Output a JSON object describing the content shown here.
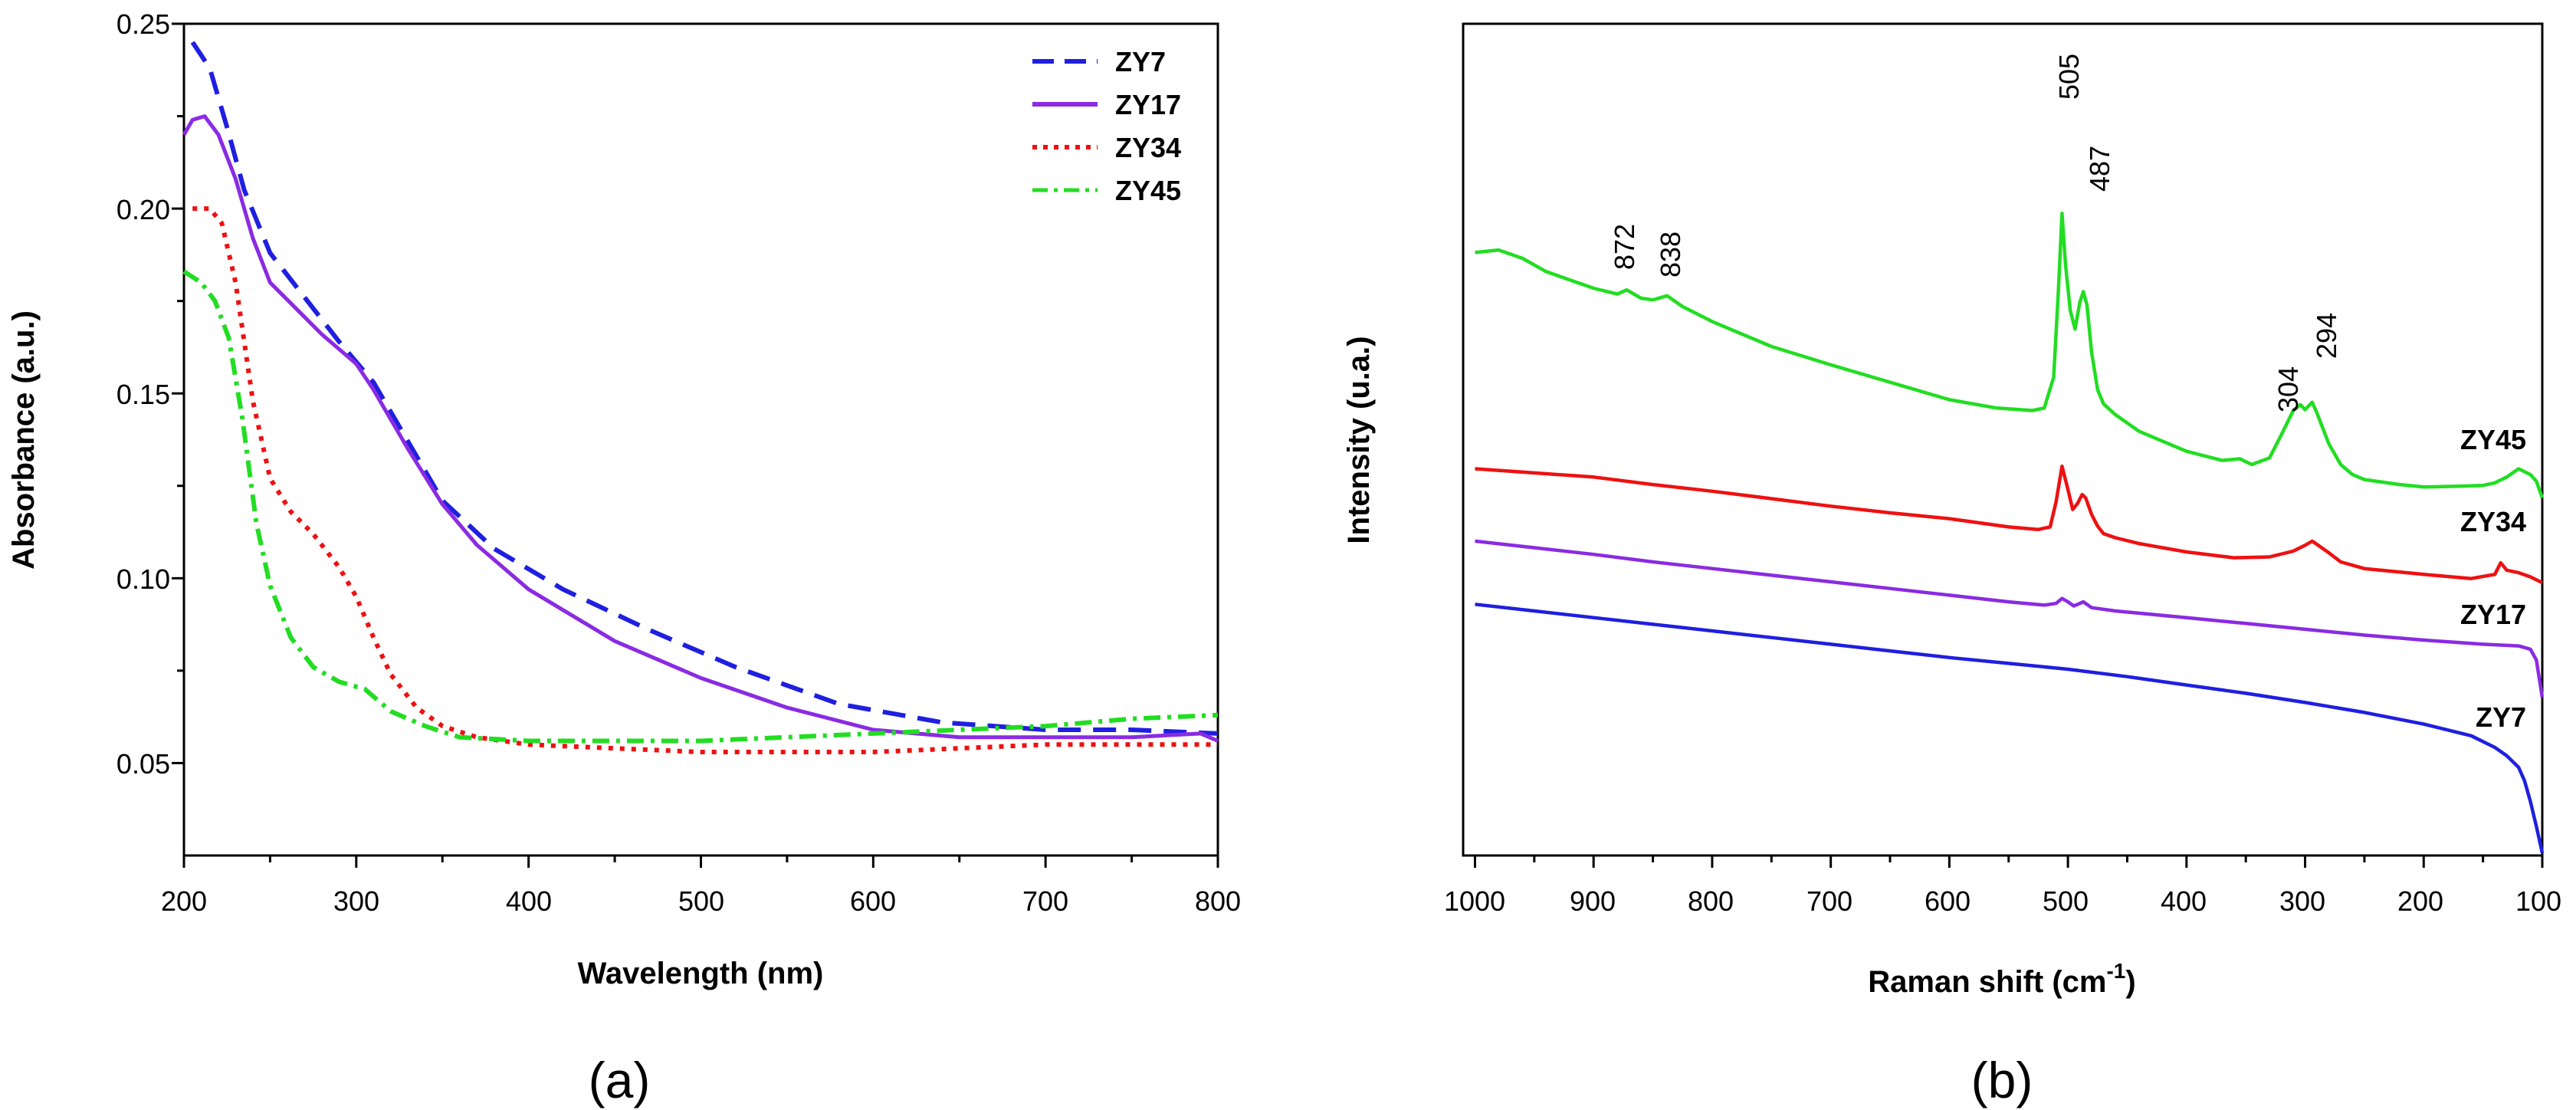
{
  "chart_data": [
    {
      "id": "a",
      "type": "line",
      "panel_label": "(a)",
      "xlabel": "Wavelength (nm)",
      "ylabel": "Absorbance (a.u.)",
      "xlim": [
        200,
        800
      ],
      "ylim": [
        0.025,
        0.25
      ],
      "xticks": [
        "200",
        "300",
        "400",
        "500",
        "600",
        "700",
        "800"
      ],
      "yticks": [
        "0.05",
        "0.10",
        "0.15",
        "0.20",
        "0.25"
      ],
      "legend_position": "top-right",
      "series": [
        {
          "name": "ZY7",
          "color": "#1f1fe0",
          "style": "dash",
          "x": [
            205,
            215,
            225,
            235,
            250,
            270,
            290,
            310,
            330,
            350,
            380,
            420,
            470,
            520,
            580,
            640,
            700,
            750,
            800
          ],
          "y": [
            0.245,
            0.238,
            0.222,
            0.205,
            0.188,
            0.176,
            0.164,
            0.153,
            0.137,
            0.121,
            0.108,
            0.097,
            0.086,
            0.076,
            0.066,
            0.061,
            0.059,
            0.059,
            0.058
          ]
        },
        {
          "name": "ZY17",
          "color": "#8a2be2",
          "style": "solid",
          "x": [
            200,
            205,
            212,
            220,
            230,
            240,
            250,
            265,
            280,
            300,
            310,
            330,
            350,
            370,
            400,
            450,
            500,
            550,
            600,
            650,
            700,
            750,
            790,
            800
          ],
          "y": [
            0.22,
            0.224,
            0.225,
            0.22,
            0.208,
            0.192,
            0.18,
            0.173,
            0.166,
            0.158,
            0.151,
            0.135,
            0.12,
            0.109,
            0.097,
            0.083,
            0.073,
            0.065,
            0.059,
            0.057,
            0.057,
            0.057,
            0.058,
            0.056
          ]
        },
        {
          "name": "ZY34",
          "color": "#ee1111",
          "style": "dot",
          "x": [
            205,
            215,
            222,
            230,
            240,
            250,
            262,
            275,
            290,
            300,
            310,
            320,
            335,
            350,
            370,
            400,
            450,
            500,
            550,
            600,
            650,
            700,
            750,
            800
          ],
          "y": [
            0.2,
            0.2,
            0.196,
            0.18,
            0.148,
            0.127,
            0.118,
            0.112,
            0.103,
            0.095,
            0.084,
            0.074,
            0.065,
            0.06,
            0.057,
            0.055,
            0.054,
            0.053,
            0.053,
            0.053,
            0.054,
            0.055,
            0.055,
            0.055
          ]
        },
        {
          "name": "ZY45",
          "color": "#22dd22",
          "style": "dashdot",
          "x": [
            200,
            210,
            218,
            226,
            234,
            242,
            250,
            262,
            275,
            290,
            305,
            320,
            340,
            360,
            400,
            450,
            500,
            550,
            600,
            650,
            700,
            750,
            800
          ],
          "y": [
            0.183,
            0.18,
            0.175,
            0.165,
            0.143,
            0.115,
            0.098,
            0.084,
            0.076,
            0.072,
            0.07,
            0.064,
            0.06,
            0.057,
            0.056,
            0.056,
            0.056,
            0.057,
            0.058,
            0.059,
            0.06,
            0.062,
            0.063
          ]
        }
      ]
    },
    {
      "id": "b",
      "type": "line",
      "panel_label": "(b)",
      "xlabel": "Raman shift (cm",
      "xlabel_superscript": "-1",
      "xlabel_close": ")",
      "ylabel": "Intensity (u.a.)",
      "xlim": [
        1010,
        100
      ],
      "ylim": [
        0,
        100
      ],
      "yticks_shown": false,
      "xticks": [
        "1000",
        "900",
        "800",
        "700",
        "600",
        "500",
        "400",
        "300",
        "200",
        "100"
      ],
      "series": [
        {
          "name": "ZY45",
          "color": "#22dd22",
          "x": [
            1000,
            980,
            960,
            940,
            900,
            880,
            872,
            860,
            850,
            838,
            825,
            800,
            750,
            700,
            650,
            600,
            560,
            530,
            520,
            512,
            508,
            505,
            502,
            498,
            494,
            490,
            487,
            484,
            480,
            475,
            470,
            460,
            440,
            400,
            370,
            355,
            345,
            330,
            320,
            310,
            304,
            300,
            294,
            290,
            280,
            270,
            260,
            250,
            220,
            200,
            170,
            150,
            140,
            130,
            120,
            110,
            105,
            100
          ],
          "y": [
            72.5,
            72.8,
            71.8,
            70.2,
            68.2,
            67.5,
            68.0,
            67.0,
            66.8,
            67.3,
            66.0,
            64.2,
            61.2,
            59.0,
            56.9,
            54.8,
            53.8,
            53.5,
            53.8,
            57.5,
            68.0,
            77.2,
            71.0,
            65.5,
            63.3,
            66.5,
            67.8,
            66.2,
            60.5,
            56.0,
            54.3,
            53.0,
            51.0,
            48.6,
            47.5,
            47.7,
            47.0,
            47.8,
            50.6,
            53.5,
            54.2,
            53.6,
            54.5,
            53.2,
            49.5,
            47.0,
            45.8,
            45.2,
            44.6,
            44.3,
            44.4,
            44.5,
            44.8,
            45.5,
            46.5,
            45.8,
            45.0,
            43.0
          ]
        },
        {
          "name": "ZY34",
          "color": "#ee1111",
          "x": [
            1000,
            950,
            900,
            850,
            800,
            750,
            700,
            650,
            600,
            550,
            525,
            515,
            510,
            505,
            500,
            496,
            492,
            488,
            485,
            480,
            475,
            470,
            460,
            440,
            400,
            360,
            330,
            310,
            300,
            294,
            288,
            280,
            270,
            250,
            200,
            160,
            140,
            135,
            130,
            120,
            110,
            100
          ],
          "y": [
            46.5,
            46.0,
            45.5,
            44.6,
            43.8,
            42.9,
            42.0,
            41.2,
            40.5,
            39.5,
            39.2,
            39.5,
            42.5,
            46.8,
            44.0,
            41.6,
            42.3,
            43.4,
            43.0,
            41.0,
            39.6,
            38.7,
            38.2,
            37.5,
            36.5,
            35.8,
            35.9,
            36.6,
            37.3,
            37.8,
            37.2,
            36.4,
            35.3,
            34.5,
            33.8,
            33.3,
            33.8,
            35.2,
            34.3,
            34.0,
            33.5,
            32.8
          ]
        },
        {
          "name": "ZY17",
          "color": "#8a2be2",
          "x": [
            1000,
            950,
            900,
            850,
            800,
            750,
            700,
            650,
            600,
            550,
            520,
            510,
            505,
            500,
            495,
            490,
            487,
            480,
            460,
            400,
            350,
            300,
            250,
            200,
            150,
            120,
            110,
            105,
            100
          ],
          "y": [
            37.8,
            37.0,
            36.2,
            35.3,
            34.5,
            33.7,
            32.9,
            32.1,
            31.3,
            30.5,
            30.1,
            30.3,
            30.9,
            30.5,
            30.0,
            30.3,
            30.5,
            29.8,
            29.4,
            28.6,
            27.9,
            27.2,
            26.5,
            25.9,
            25.4,
            25.2,
            24.8,
            23.5,
            19.0
          ]
        },
        {
          "name": "ZY7",
          "color": "#1f1fe0",
          "x": [
            1000,
            950,
            900,
            850,
            800,
            750,
            700,
            650,
            600,
            550,
            500,
            450,
            400,
            350,
            300,
            250,
            200,
            160,
            140,
            130,
            120,
            115,
            110,
            105,
            100
          ],
          "y": [
            30.2,
            29.4,
            28.6,
            27.8,
            27.0,
            26.2,
            25.4,
            24.6,
            23.8,
            23.1,
            22.4,
            21.5,
            20.5,
            19.5,
            18.4,
            17.2,
            15.8,
            14.4,
            13.0,
            12.0,
            10.6,
            9.0,
            6.5,
            3.5,
            0.3
          ]
        }
      ],
      "curve_labels": [
        "ZY45",
        "ZY34",
        "ZY17",
        "ZY7"
      ],
      "peak_annotations": [
        "505",
        "487",
        "872",
        "838",
        "304",
        "294"
      ]
    }
  ]
}
